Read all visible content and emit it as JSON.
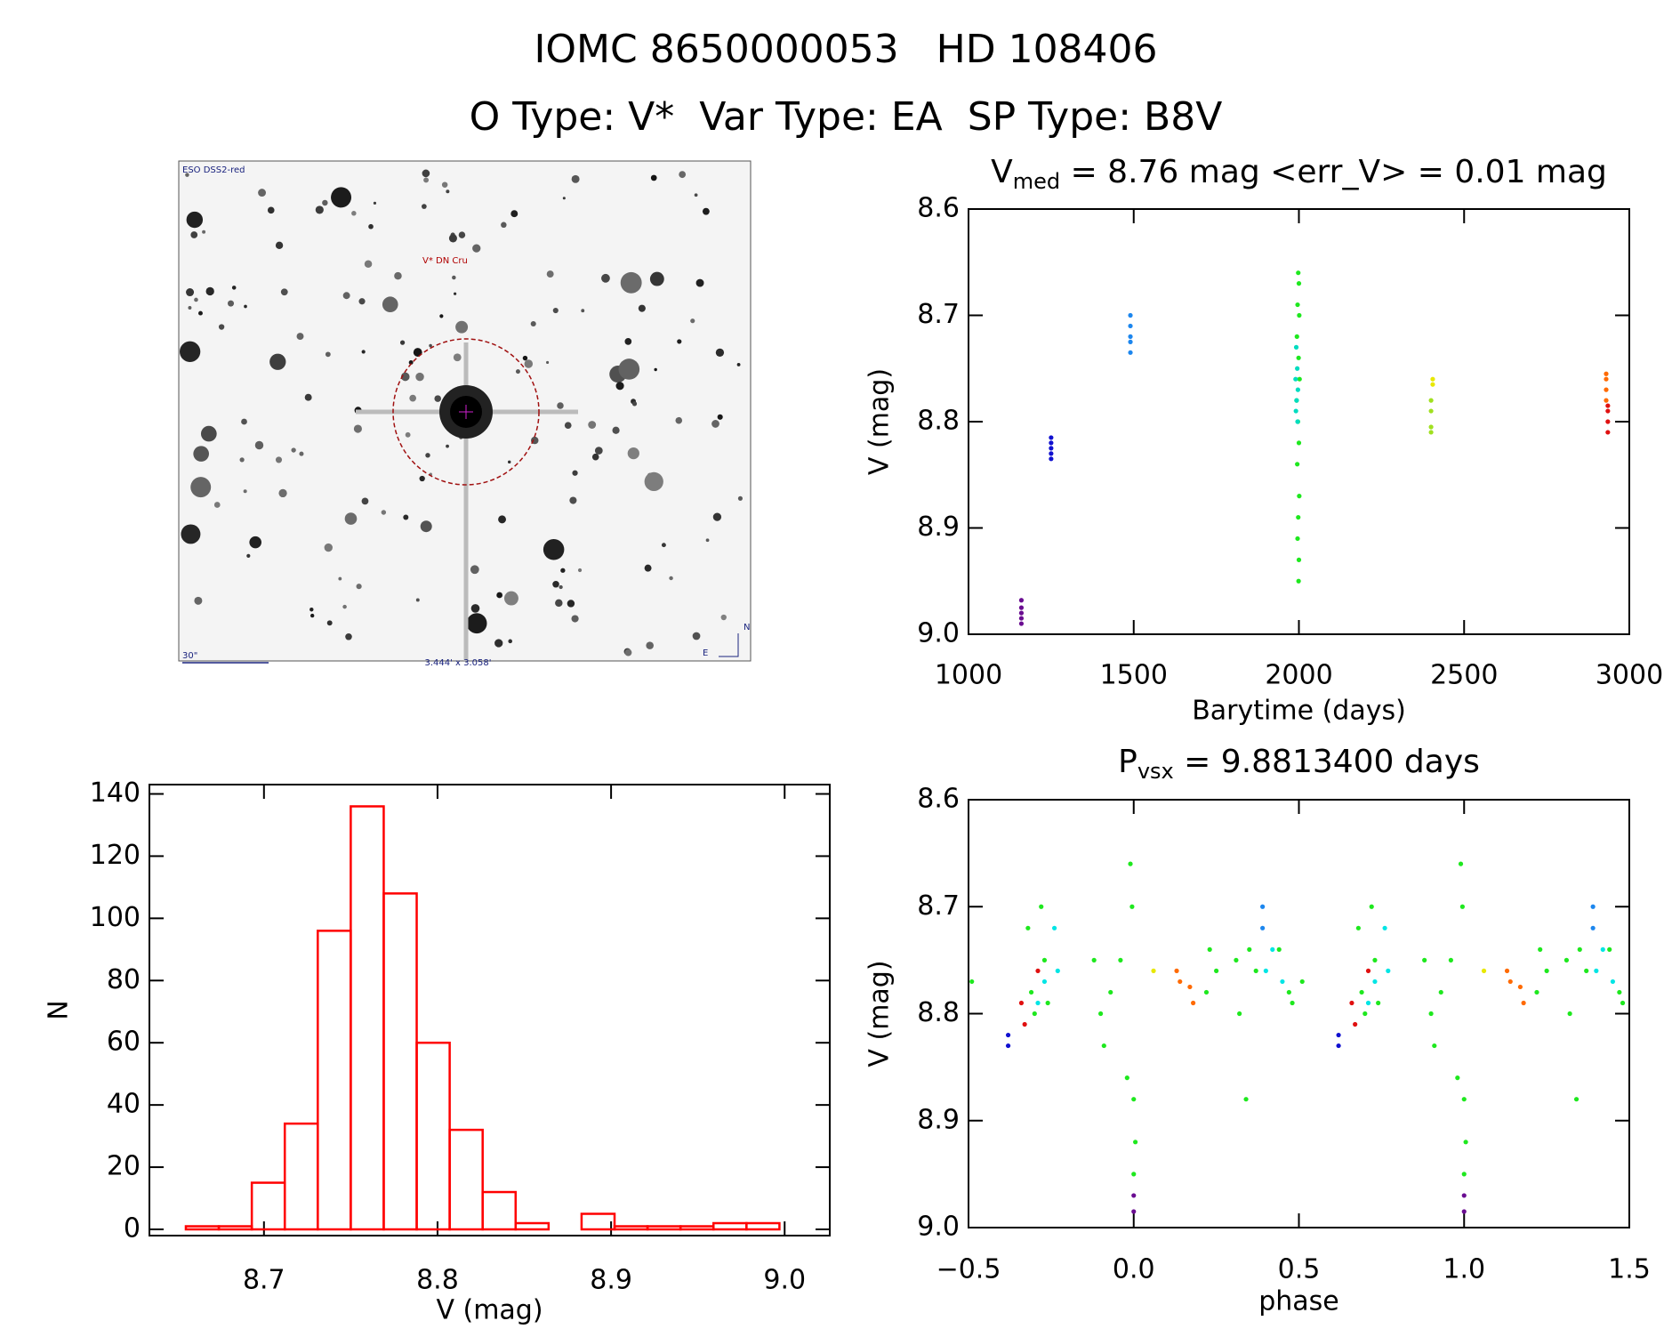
{
  "header": {
    "title": "IOMC 8650000053   HD 108406",
    "subtitle": "O Type: V*  Var Type: EA  SP Type: B8V"
  },
  "image": {
    "survey": "ESO DSS2-red",
    "target": "V* DN Cru",
    "scale": "30\"",
    "size": "3.444' x 3.058'",
    "east": "E",
    "north": "N"
  },
  "chart_data": [
    {
      "type": "scatter",
      "title": "V",
      "title_subscript": "med",
      "title_rest": " = 8.76 mag <err_V> = 0.01 mag",
      "x_label": "Barytime (days)",
      "y_label": "V (mag)",
      "xlim": [
        1000,
        3000
      ],
      "xticks": [
        1000,
        1500,
        2000,
        2500,
        3000
      ],
      "ylim": [
        9,
        8.6
      ],
      "yticks": [
        8.6,
        8.7,
        8.8,
        8.9,
        {
          "value": 9,
          "label": "9.0"
        }
      ],
      "series": [
        {
          "color": "#6a0d91",
          "x": [
            1160,
            1160,
            1160,
            1160,
            1160
          ],
          "values": [
            8.968,
            8.975,
            8.98,
            8.985,
            8.99
          ]
        },
        {
          "color": "#1010d0",
          "x": [
            1250,
            1250,
            1250,
            1250,
            1250
          ],
          "values": [
            8.815,
            8.82,
            8.825,
            8.83,
            8.835
          ]
        },
        {
          "color": "#1c86ee",
          "x": [
            1490,
            1490,
            1490,
            1490,
            1490
          ],
          "values": [
            8.7,
            8.71,
            8.72,
            8.725,
            8.735
          ]
        },
        {
          "color": "#1ee81e",
          "x": [
            1998,
            2000,
            1996,
            2001,
            1994,
            1999,
            2002,
            1993,
            1997,
            2000,
            1995,
            2001,
            1998,
            1996,
            2000,
            1999
          ],
          "values": [
            8.66,
            8.67,
            8.69,
            8.7,
            8.72,
            8.74,
            8.76,
            8.78,
            8.8,
            8.82,
            8.84,
            8.87,
            8.89,
            8.91,
            8.93,
            8.95
          ]
        },
        {
          "color": "#00dcc0",
          "x": [
            1992,
            1995,
            1990,
            1997,
            1993,
            1991,
            1996
          ],
          "values": [
            8.73,
            8.75,
            8.76,
            8.77,
            8.78,
            8.79,
            8.8
          ]
        },
        {
          "color": "#e8e800",
          "x": [
            2405,
            2405
          ],
          "values": [
            8.76,
            8.765
          ]
        },
        {
          "color": "#a0e020",
          "x": [
            2400,
            2400,
            2400,
            2400
          ],
          "values": [
            8.78,
            8.79,
            8.805,
            8.81
          ]
        },
        {
          "color": "#ff6a00",
          "x": [
            2930,
            2930,
            2930,
            2930
          ],
          "values": [
            8.755,
            8.76,
            8.77,
            8.78
          ]
        },
        {
          "color": "#e01010",
          "x": [
            2935,
            2935,
            2935,
            2935
          ],
          "values": [
            8.785,
            8.79,
            8.8,
            8.81
          ]
        }
      ]
    },
    {
      "type": "histogram",
      "x_label": "V (mag)",
      "y_label": "N",
      "color": "#ff0000",
      "bins": [
        8.655,
        8.674,
        8.693,
        8.712,
        8.731,
        8.75,
        8.769,
        8.788,
        8.807,
        8.826,
        8.845,
        8.864,
        8.883,
        8.902,
        8.921,
        8.94,
        8.959,
        8.978,
        8.997
      ],
      "values": [
        1,
        1,
        15,
        34,
        96,
        136,
        108,
        60,
        32,
        12,
        2,
        0,
        5,
        1,
        1,
        1,
        2,
        2
      ],
      "xlim": [
        8.634,
        9.026
      ],
      "xticks": [
        8.7,
        8.8,
        8.9,
        {
          "value": 9,
          "label": "9.0"
        }
      ],
      "ylim": [
        -2,
        143
      ],
      "yticks": [
        0,
        20,
        40,
        60,
        80,
        100,
        120,
        140
      ]
    },
    {
      "type": "scatter",
      "title": "P",
      "title_subscript": "vsx",
      "title_rest": " = 9.8813400 days",
      "x_label": "phase",
      "y_label": "V (mag)",
      "xlim": [
        -0.5,
        1.5
      ],
      "xticks": [
        {
          "value": -0.5,
          "label": "−0.5"
        },
        {
          "value": 0,
          "label": "0.0"
        },
        0.5,
        {
          "value": 1,
          "label": "1.0"
        },
        1.5
      ],
      "ylim": [
        9,
        8.6
      ],
      "yticks": [
        8.6,
        8.7,
        8.8,
        8.9,
        {
          "value": 9,
          "label": "9.0"
        }
      ],
      "series": [
        {
          "color": "#1ee81e",
          "x": [
            -0.49,
            -0.32,
            -0.31,
            -0.3,
            -0.28,
            -0.27,
            -0.26,
            -0.12,
            -0.1,
            -0.09,
            -0.07,
            -0.04,
            -0.01,
            -0.005,
            0,
            0.005,
            0,
            -0.02,
            0.23,
            0.22,
            0.25,
            0.31,
            0.32,
            0.34,
            0.35,
            0.37,
            0.44,
            0.47,
            0.48,
            0.51,
            0.68,
            0.69,
            0.7,
            0.72,
            0.73,
            0.74,
            0.88,
            0.9,
            0.91,
            0.93,
            0.96,
            0.99,
            0.995,
            1,
            1.005,
            1,
            0.98,
            1.23,
            1.22,
            1.25,
            1.31,
            1.32,
            1.34,
            1.35,
            1.37,
            1.44,
            1.47,
            1.48
          ],
          "values": [
            8.77,
            8.72,
            8.78,
            8.8,
            8.7,
            8.75,
            8.79,
            8.75,
            8.8,
            8.83,
            8.78,
            8.75,
            8.66,
            8.7,
            8.88,
            8.92,
            8.95,
            8.86,
            8.74,
            8.78,
            8.76,
            8.75,
            8.8,
            8.88,
            8.74,
            8.76,
            8.74,
            8.78,
            8.79,
            8.77,
            8.72,
            8.78,
            8.8,
            8.7,
            8.75,
            8.79,
            8.75,
            8.8,
            8.83,
            8.78,
            8.75,
            8.66,
            8.7,
            8.88,
            8.92,
            8.95,
            8.86,
            8.74,
            8.78,
            8.76,
            8.75,
            8.8,
            8.88,
            8.74,
            8.76,
            8.74,
            8.78,
            8.79
          ]
        },
        {
          "color": "#00e5e5",
          "x": [
            -0.27,
            -0.24,
            -0.23,
            0.4,
            0.42,
            0.45,
            -0.29,
            0.73,
            0.76,
            0.77,
            1.4,
            1.42,
            1.45,
            0.71
          ],
          "values": [
            8.77,
            8.72,
            8.76,
            8.76,
            8.74,
            8.77,
            8.79,
            8.77,
            8.72,
            8.76,
            8.76,
            8.74,
            8.77,
            8.79
          ]
        },
        {
          "color": "#6a0d91",
          "x": [
            0,
            0,
            1,
            1
          ],
          "values": [
            8.97,
            8.985,
            8.97,
            8.985
          ]
        },
        {
          "color": "#1010d0",
          "x": [
            -0.38,
            -0.38,
            0.62,
            0.62
          ],
          "values": [
            8.82,
            8.83,
            8.82,
            8.83
          ]
        },
        {
          "color": "#1c86ee",
          "x": [
            0.39,
            0.39,
            1.39,
            1.39
          ],
          "values": [
            8.7,
            8.72,
            8.7,
            8.72
          ]
        },
        {
          "color": "#e01010",
          "x": [
            -0.34,
            -0.33,
            -0.29,
            0.66,
            0.67,
            0.71
          ],
          "values": [
            8.79,
            8.81,
            8.76,
            8.79,
            8.81,
            8.76
          ]
        },
        {
          "color": "#ff6a00",
          "x": [
            0.13,
            0.14,
            0.17,
            0.18,
            1.13,
            1.14,
            1.17,
            1.18
          ],
          "values": [
            8.76,
            8.77,
            8.775,
            8.79,
            8.76,
            8.77,
            8.775,
            8.79
          ]
        },
        {
          "color": "#e8e800",
          "x": [
            0.06,
            1.06
          ],
          "values": [
            8.76,
            8.76
          ]
        }
      ]
    }
  ]
}
